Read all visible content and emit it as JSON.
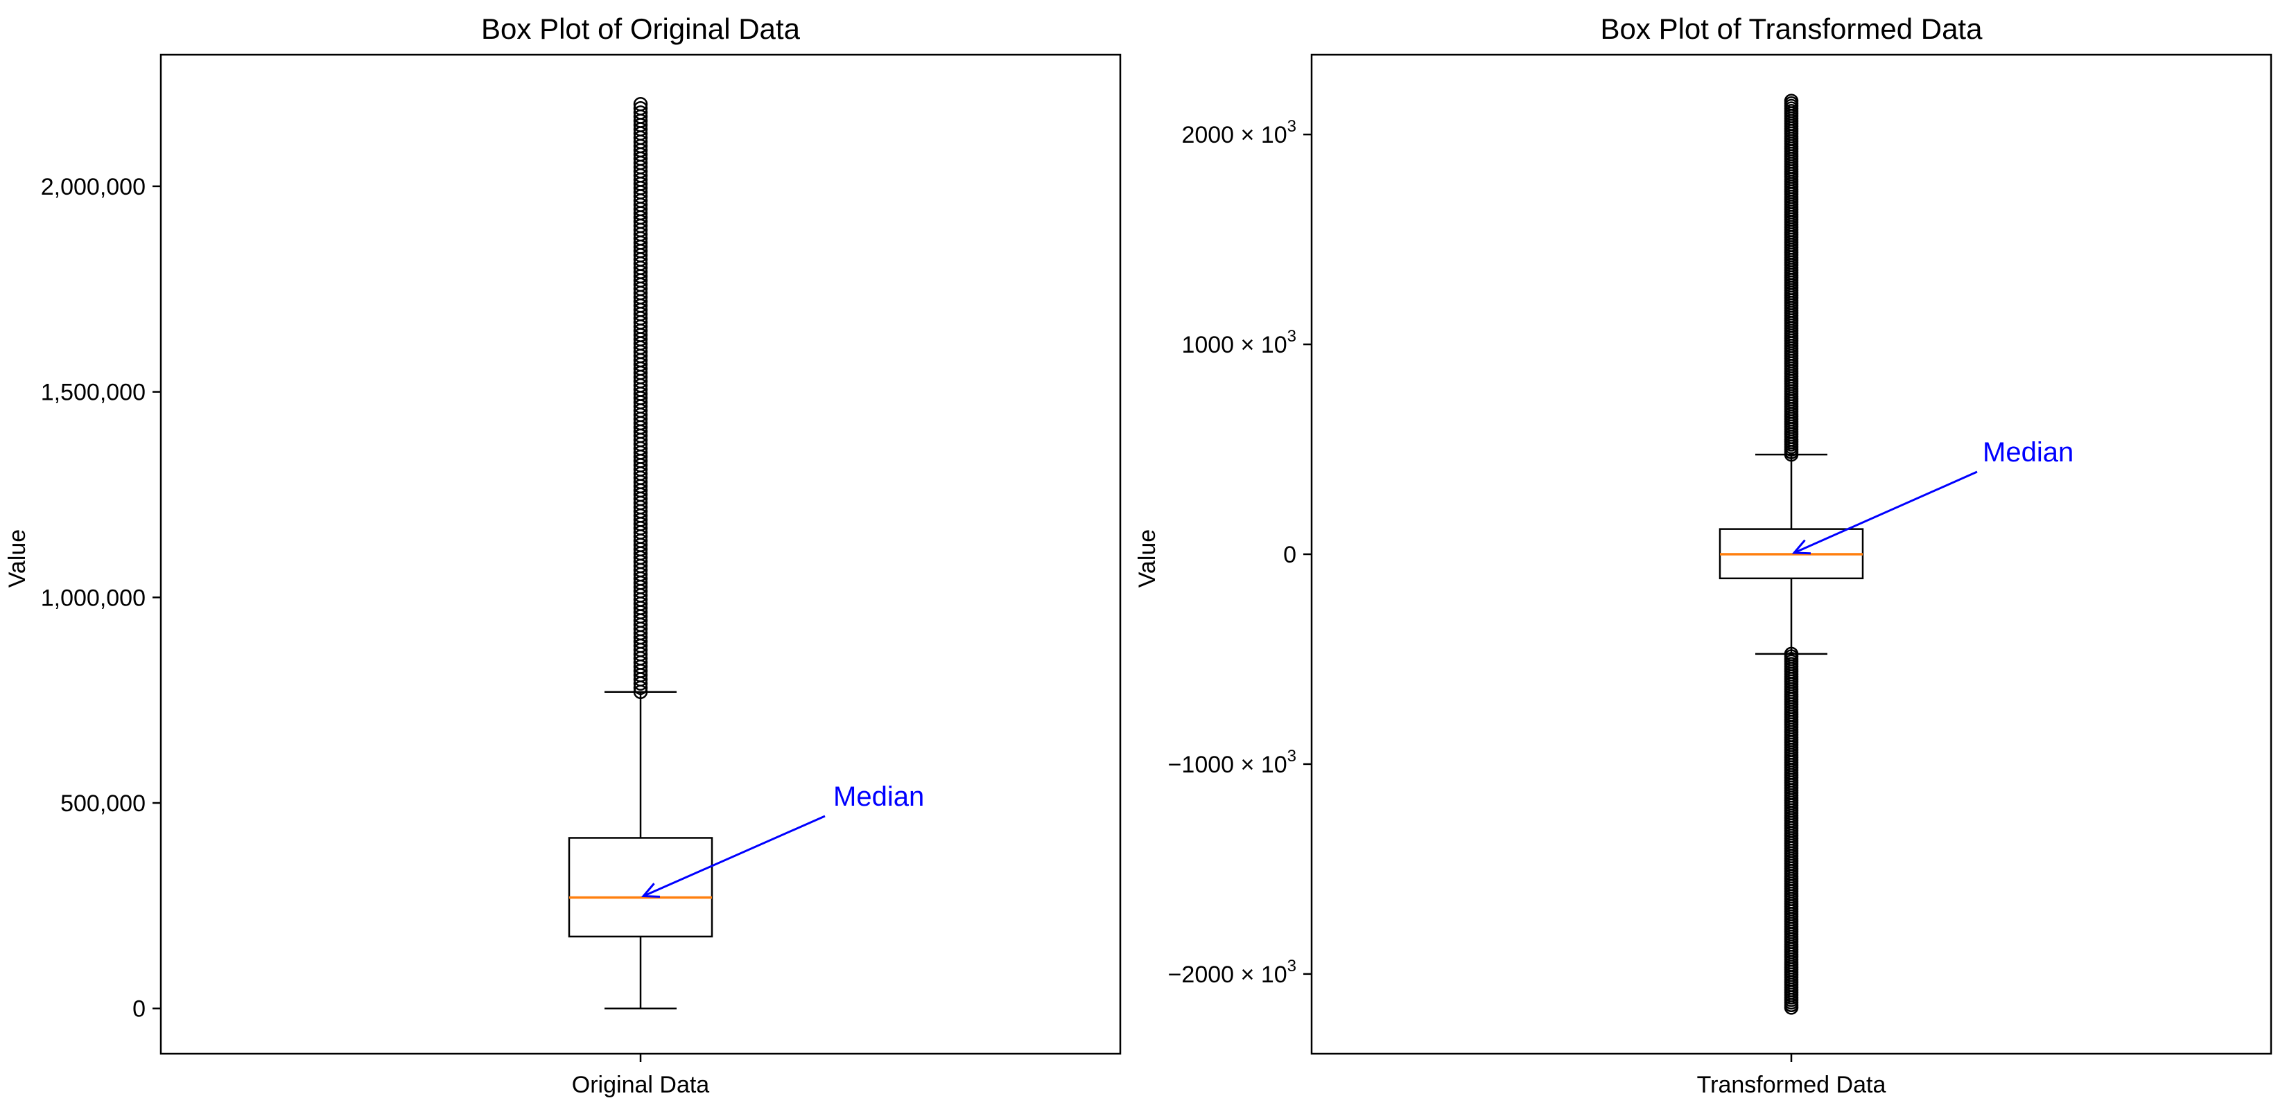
{
  "chart_data": [
    {
      "type": "box",
      "title": "Box Plot of Original Data",
      "ylabel": "Value",
      "xlabel": "",
      "categories": [
        "Original Data"
      ],
      "ylim": [
        -110000,
        2320000
      ],
      "yticks": [
        0,
        500000,
        1000000,
        1500000,
        2000000
      ],
      "ytick_labels": [
        "0",
        "500,000",
        "1,000,000",
        "1,500,000",
        "2,000,000"
      ],
      "box": {
        "whisker_low": 0,
        "q1": 175000,
        "median": 270000,
        "q3": 415000,
        "whisker_high": 770000,
        "outliers_upper_range": [
          770000,
          2200000
        ],
        "outliers_lower_range": null
      },
      "annotation": {
        "text": "Median",
        "color": "#0000ff"
      },
      "colors": {
        "median": "#ff7f0e",
        "box": "#000000"
      }
    },
    {
      "type": "box",
      "title": "Box Plot of Transformed Data",
      "ylabel": "Value",
      "xlabel": "",
      "categories": [
        "Transformed Data"
      ],
      "ylim": [
        -2380000,
        2380000
      ],
      "yticks": [
        -2000000,
        -1000000,
        0,
        1000000,
        2000000
      ],
      "ytick_labels": [
        {
          "base": "−2000 × 10",
          "exp": "3"
        },
        {
          "base": "−1000 × 10",
          "exp": "3"
        },
        {
          "base": "0",
          "exp": ""
        },
        {
          "base": "1000 × 10",
          "exp": "3"
        },
        {
          "base": "2000 × 10",
          "exp": "3"
        }
      ],
      "box": {
        "whisker_low": -475000,
        "q1": -115000,
        "median": 0,
        "q3": 120000,
        "whisker_high": 475000,
        "outliers_upper_range": [
          475000,
          2160000
        ],
        "outliers_lower_range": [
          -2160000,
          -475000
        ]
      },
      "annotation": {
        "text": "Median",
        "color": "#0000ff"
      },
      "colors": {
        "median": "#ff7f0e",
        "box": "#000000"
      }
    }
  ]
}
